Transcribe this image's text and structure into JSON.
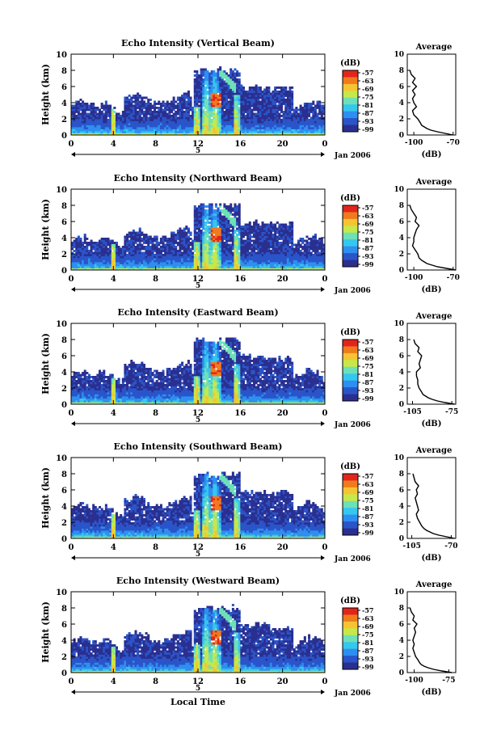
{
  "chart_data": [
    {
      "type": "heatmap",
      "title": "Echo Intensity (Vertical Beam)",
      "ylabel": "Height (km)",
      "x_ticks": [
        "0",
        "4",
        "8",
        "12",
        "16",
        "20",
        "0"
      ],
      "y_ticks": [
        "0",
        "2",
        "4",
        "6",
        "8",
        "10"
      ],
      "xlim": [
        0,
        24
      ],
      "ylim": [
        0,
        10
      ],
      "day_label": "5",
      "date_label": "Jan 2006",
      "colorbar": {
        "unit": "(dB)",
        "ticks": [
          "-57",
          "-63",
          "-69",
          "-75",
          "-81",
          "-87",
          "-93",
          "-99"
        ]
      },
      "profile": {
        "title": "Average",
        "xlabel": "(dB)",
        "x_ticks": [
          "-100",
          "-70"
        ],
        "xlim": [
          -105,
          -68
        ],
        "y_ticks": [
          "0",
          "2",
          "4",
          "6",
          "8",
          "10"
        ],
        "heights": [
          0,
          0.2,
          0.4,
          0.6,
          0.8,
          1,
          1.2,
          1.5,
          2,
          2.5,
          3,
          3.5,
          4,
          4.5,
          5,
          5.5,
          6,
          6.5,
          7,
          7.5,
          8
        ],
        "values": [
          -70,
          -76,
          -82,
          -87,
          -90,
          -92,
          -94,
          -95,
          -97,
          -100,
          -101,
          -98,
          -100,
          -101,
          -99,
          -101,
          -98,
          -101,
          -99,
          -102,
          -103
        ]
      }
    },
    {
      "type": "heatmap",
      "title": "Echo Intensity (Northward Beam)",
      "ylabel": "Height (km)",
      "x_ticks": [
        "0",
        "4",
        "8",
        "12",
        "16",
        "20",
        "0"
      ],
      "y_ticks": [
        "0",
        "2",
        "4",
        "6",
        "8",
        "10"
      ],
      "xlim": [
        0,
        24
      ],
      "ylim": [
        0,
        10
      ],
      "day_label": "5",
      "date_label": "Jan 2006",
      "colorbar": {
        "unit": "(dB)",
        "ticks": [
          "-57",
          "-63",
          "-69",
          "-75",
          "-81",
          "-87",
          "-93",
          "-99"
        ]
      },
      "profile": {
        "title": "Average",
        "xlabel": "(dB)",
        "x_ticks": [
          "-100",
          "-70"
        ],
        "xlim": [
          -105,
          -68
        ],
        "y_ticks": [
          "0",
          "2",
          "4",
          "6",
          "8",
          "10"
        ],
        "heights": [
          0,
          0.2,
          0.4,
          0.6,
          0.8,
          1,
          1.2,
          1.5,
          2,
          2.5,
          3,
          3.5,
          4,
          4.5,
          5,
          5.5,
          6,
          6.5,
          7,
          7.5,
          8
        ],
        "values": [
          -68,
          -75,
          -82,
          -86,
          -90,
          -92,
          -94,
          -96,
          -97,
          -99,
          -101,
          -100,
          -100,
          -99,
          -98,
          -96,
          -99,
          -98,
          -100,
          -102,
          -103
        ]
      }
    },
    {
      "type": "heatmap",
      "title": "Echo Intensity (Eastward Beam)",
      "ylabel": "Height (km)",
      "x_ticks": [
        "0",
        "4",
        "8",
        "12",
        "16",
        "20",
        "0"
      ],
      "y_ticks": [
        "0",
        "2",
        "4",
        "6",
        "8",
        "10"
      ],
      "xlim": [
        0,
        24
      ],
      "ylim": [
        0,
        10
      ],
      "day_label": "5",
      "date_label": "Jan 2006",
      "colorbar": {
        "unit": "(dB)",
        "ticks": [
          "-57",
          "-63",
          "-69",
          "-75",
          "-81",
          "-87",
          "-93",
          "-99"
        ]
      },
      "profile": {
        "title": "Average",
        "xlabel": "(dB)",
        "x_ticks": [
          "-105",
          "-75"
        ],
        "xlim": [
          -109,
          -72
        ],
        "y_ticks": [
          "0",
          "2",
          "4",
          "6",
          "8",
          "10"
        ],
        "heights": [
          0,
          0.2,
          0.4,
          0.6,
          0.8,
          1,
          1.2,
          1.5,
          2,
          2.5,
          3,
          3.5,
          4,
          4.5,
          5,
          5.5,
          6,
          6.5,
          7,
          7.5,
          8
        ],
        "values": [
          -73,
          -80,
          -86,
          -90,
          -93,
          -95,
          -97,
          -98,
          -100,
          -101,
          -101,
          -102,
          -102,
          -99,
          -100,
          -99,
          -98,
          -101,
          -100,
          -103,
          -104
        ]
      }
    },
    {
      "type": "heatmap",
      "title": "Echo Intensity (Southward Beam)",
      "ylabel": "Height (km)",
      "x_ticks": [
        "0",
        "4",
        "8",
        "12",
        "16",
        "20",
        "0"
      ],
      "y_ticks": [
        "0",
        "2",
        "4",
        "6",
        "8",
        "10"
      ],
      "xlim": [
        0,
        24
      ],
      "ylim": [
        0,
        10
      ],
      "day_label": "5",
      "date_label": "Jan 2006",
      "colorbar": {
        "unit": "(dB)",
        "ticks": [
          "-57",
          "-63",
          "-69",
          "-75",
          "-81",
          "-87",
          "-93",
          "-99"
        ]
      },
      "profile": {
        "title": "Average",
        "xlabel": "(dB)",
        "x_ticks": [
          "-105",
          "-70"
        ],
        "xlim": [
          -109,
          -66
        ],
        "y_ticks": [
          "0",
          "2",
          "4",
          "6",
          "8",
          "10"
        ],
        "heights": [
          0,
          0.2,
          0.4,
          0.6,
          0.8,
          1,
          1.2,
          1.5,
          2,
          2.5,
          3,
          3.5,
          4,
          4.5,
          5,
          5.5,
          6,
          6.5,
          7,
          7.5,
          8
        ],
        "values": [
          -67,
          -74,
          -81,
          -86,
          -89,
          -92,
          -94,
          -96,
          -98,
          -100,
          -101,
          -99,
          -100,
          -101,
          -102,
          -100,
          -101,
          -99,
          -102,
          -103,
          -104
        ]
      }
    },
    {
      "type": "heatmap",
      "title": "Echo Intensity (Westward Beam)",
      "ylabel": "Height (km)",
      "xlabel": "Local Time",
      "x_ticks": [
        "0",
        "4",
        "8",
        "12",
        "16",
        "20",
        "0"
      ],
      "y_ticks": [
        "0",
        "2",
        "4",
        "6",
        "8",
        "10"
      ],
      "xlim": [
        0,
        24
      ],
      "ylim": [
        0,
        10
      ],
      "day_label": "5",
      "date_label": "Jan 2006",
      "colorbar": {
        "unit": "(dB)",
        "ticks": [
          "-57",
          "-63",
          "-69",
          "-75",
          "-81",
          "-87",
          "-93",
          "-99"
        ]
      },
      "profile": {
        "title": "Average",
        "xlabel": "(dB)",
        "x_ticks": [
          "-100",
          "-75"
        ],
        "xlim": [
          -105,
          -70
        ],
        "y_ticks": [
          "0",
          "2",
          "4",
          "6",
          "8",
          "10"
        ],
        "heights": [
          0,
          0.2,
          0.4,
          0.6,
          0.8,
          1,
          1.2,
          1.5,
          2,
          2.5,
          3,
          3.5,
          4,
          4.5,
          5,
          5.5,
          6,
          6.5,
          7,
          7.5,
          8
        ],
        "values": [
          -73,
          -80,
          -86,
          -90,
          -93,
          -95,
          -96,
          -97,
          -99,
          -100,
          -101,
          -100,
          -101,
          -100,
          -99,
          -100,
          -98,
          -101,
          -100,
          -102,
          -103
        ]
      }
    }
  ],
  "colors": {
    "scale": [
      "#2b2f8f",
      "#2a55c9",
      "#2e8ff0",
      "#35c7ee",
      "#6ee0b8",
      "#c7e84a",
      "#f6c431",
      "#f07a1d",
      "#e2251c"
    ]
  }
}
